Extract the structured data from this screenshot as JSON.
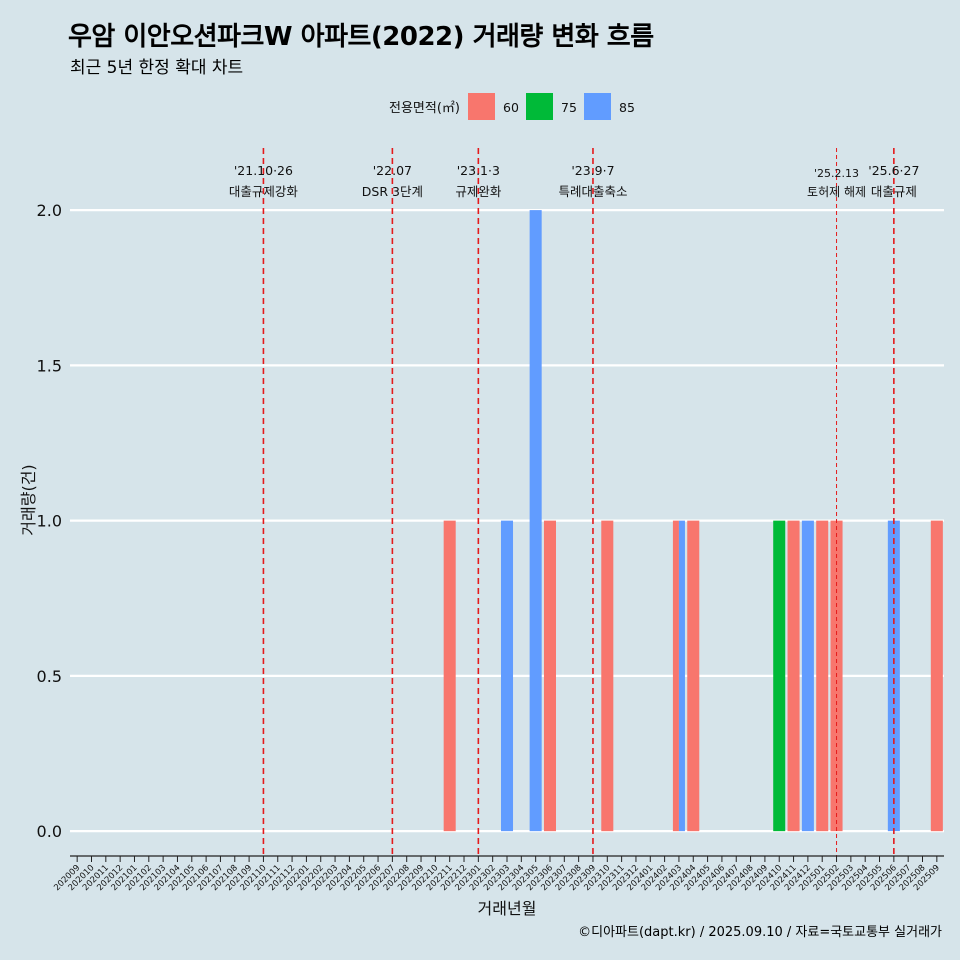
{
  "title": "우암 이안오션파크W 아파트(2022) 거래량 변화 흐름",
  "subtitle": "최근 5년 한정 확대 차트",
  "caption": "©디아파트(dapt.kr) / 2025.09.10 / 자료=국토교통부 실거래가",
  "colors": {
    "background": "#d6e4ea",
    "s60": "#f8766d",
    "s75": "#00ba38",
    "s85": "#619cff",
    "event_line": "#e41a1c"
  },
  "chart_data": {
    "type": "bar",
    "title": "우암 이안오션파크W 아파트(2022) 거래량 변화 흐름",
    "xlabel": "거래년월",
    "ylabel": "거래량(건)",
    "ylim": [
      -0.08,
      2.2
    ],
    "yticks": [
      0.0,
      0.5,
      1.0,
      1.5,
      2.0
    ],
    "ytick_labels": [
      "0.0",
      "0.5",
      "1.0",
      "1.5",
      "2.0"
    ],
    "legend": {
      "title": "전용면적(㎡)",
      "placement": "top-center",
      "entries": [
        "60",
        "75",
        "85"
      ]
    },
    "categories": [
      "202009",
      "202010",
      "202011",
      "202012",
      "202101",
      "202102",
      "202103",
      "202104",
      "202105",
      "202106",
      "202107",
      "202108",
      "202109",
      "202110",
      "202111",
      "202112",
      "202201",
      "202202",
      "202203",
      "202204",
      "202205",
      "202206",
      "202207",
      "202208",
      "202209",
      "202210",
      "202211",
      "202212",
      "202301",
      "202302",
      "202303",
      "202304",
      "202305",
      "202306",
      "202307",
      "202308",
      "202309",
      "202310",
      "202311",
      "202312",
      "202401",
      "202402",
      "202403",
      "202404",
      "202405",
      "202406",
      "202407",
      "202408",
      "202409",
      "202410",
      "202411",
      "202412",
      "202501",
      "202502",
      "202503",
      "202504",
      "202505",
      "202506",
      "202507",
      "202508",
      "202509"
    ],
    "series": [
      {
        "name": "60",
        "color": "#f8766d",
        "points": [
          [
            "202211",
            1
          ],
          [
            "202306",
            1
          ],
          [
            "202310",
            1
          ],
          [
            "202403",
            1
          ],
          [
            "202404",
            1
          ],
          [
            "202411",
            1
          ],
          [
            "202501",
            1
          ],
          [
            "202502",
            1
          ],
          [
            "202509",
            1
          ]
        ]
      },
      {
        "name": "75",
        "color": "#00ba38",
        "points": [
          [
            "202410",
            1
          ]
        ]
      },
      {
        "name": "85",
        "color": "#619cff",
        "points": [
          [
            "202303",
            1
          ],
          [
            "202305",
            2
          ],
          [
            "202403",
            1
          ],
          [
            "202412",
            1
          ],
          [
            "202506",
            1
          ]
        ]
      }
    ],
    "events": [
      {
        "date": "'21.10·26",
        "label": "대출규제강화",
        "month": "202110",
        "small": false
      },
      {
        "date": "'22.07",
        "label": "DSR 3단계",
        "month": "202207",
        "small": false
      },
      {
        "date": "'23.1·3",
        "label": "규제완화",
        "month": "202301",
        "small": false
      },
      {
        "date": "'23.9·7",
        "label": "특례대출축소",
        "month": "202309",
        "small": false
      },
      {
        "date": "'25.2.13",
        "label": "토허제 해제",
        "month": "202502",
        "small": true
      },
      {
        "date": "'25.6·27",
        "label": "대출규제",
        "month": "202506",
        "small": false
      }
    ]
  }
}
